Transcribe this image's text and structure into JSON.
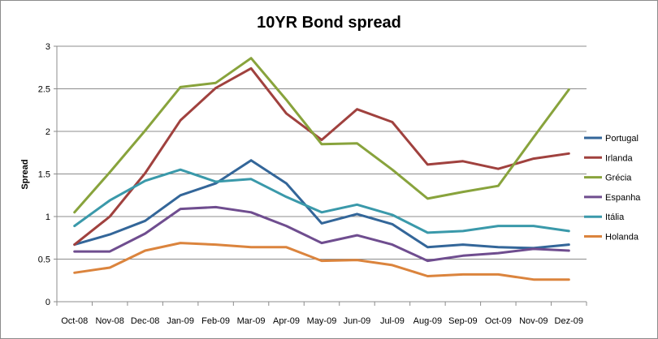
{
  "chart_data": {
    "type": "line",
    "title": "10YR Bond spread",
    "xlabel": "",
    "ylabel": "Spread",
    "ylim": [
      0,
      3
    ],
    "yticks": [
      0,
      0.5,
      1,
      1.5,
      2,
      2.5,
      3
    ],
    "ytick_labels": [
      "0",
      "0.5",
      "1",
      "1.5",
      "2",
      "2.5",
      "3"
    ],
    "grid": true,
    "legend_position": "right",
    "categories": [
      "Oct-08",
      "Nov-08",
      "Dec-08",
      "Jan-09",
      "Feb-09",
      "Mar-09",
      "Apr-09",
      "May-09",
      "Jun-09",
      "Jul-09",
      "Aug-09",
      "Sep-09",
      "Oct-09",
      "Nov-09",
      "Dez-09"
    ],
    "series": [
      {
        "name": "Portugal",
        "color": "#336699",
        "values": [
          0.67,
          0.79,
          0.95,
          1.25,
          1.39,
          1.66,
          1.39,
          0.92,
          1.03,
          0.91,
          0.64,
          0.67,
          0.64,
          0.63,
          0.67
        ]
      },
      {
        "name": "Irlanda",
        "color": "#A0413E",
        "values": [
          0.67,
          1.0,
          1.51,
          2.13,
          2.51,
          2.74,
          2.21,
          1.9,
          2.26,
          2.11,
          1.61,
          1.65,
          1.56,
          1.68,
          1.74
        ]
      },
      {
        "name": "Grécia",
        "color": "#88A33C",
        "values": [
          1.05,
          1.52,
          2.01,
          2.52,
          2.57,
          2.86,
          2.37,
          1.85,
          1.86,
          1.55,
          1.21,
          1.29,
          1.36,
          1.93,
          2.49
        ]
      },
      {
        "name": "Espanha",
        "color": "#6F4D8F",
        "values": [
          0.59,
          0.59,
          0.8,
          1.09,
          1.11,
          1.05,
          0.89,
          0.69,
          0.78,
          0.67,
          0.48,
          0.54,
          0.57,
          0.62,
          0.6
        ]
      },
      {
        "name": "Itália",
        "color": "#3A99AA",
        "values": [
          0.89,
          1.19,
          1.42,
          1.55,
          1.41,
          1.44,
          1.23,
          1.05,
          1.14,
          1.02,
          0.81,
          0.83,
          0.89,
          0.89,
          0.83
        ]
      },
      {
        "name": "Holanda",
        "color": "#DB843D",
        "values": [
          0.34,
          0.4,
          0.6,
          0.69,
          0.67,
          0.64,
          0.64,
          0.48,
          0.49,
          0.43,
          0.3,
          0.32,
          0.32,
          0.26,
          0.26
        ]
      }
    ]
  }
}
